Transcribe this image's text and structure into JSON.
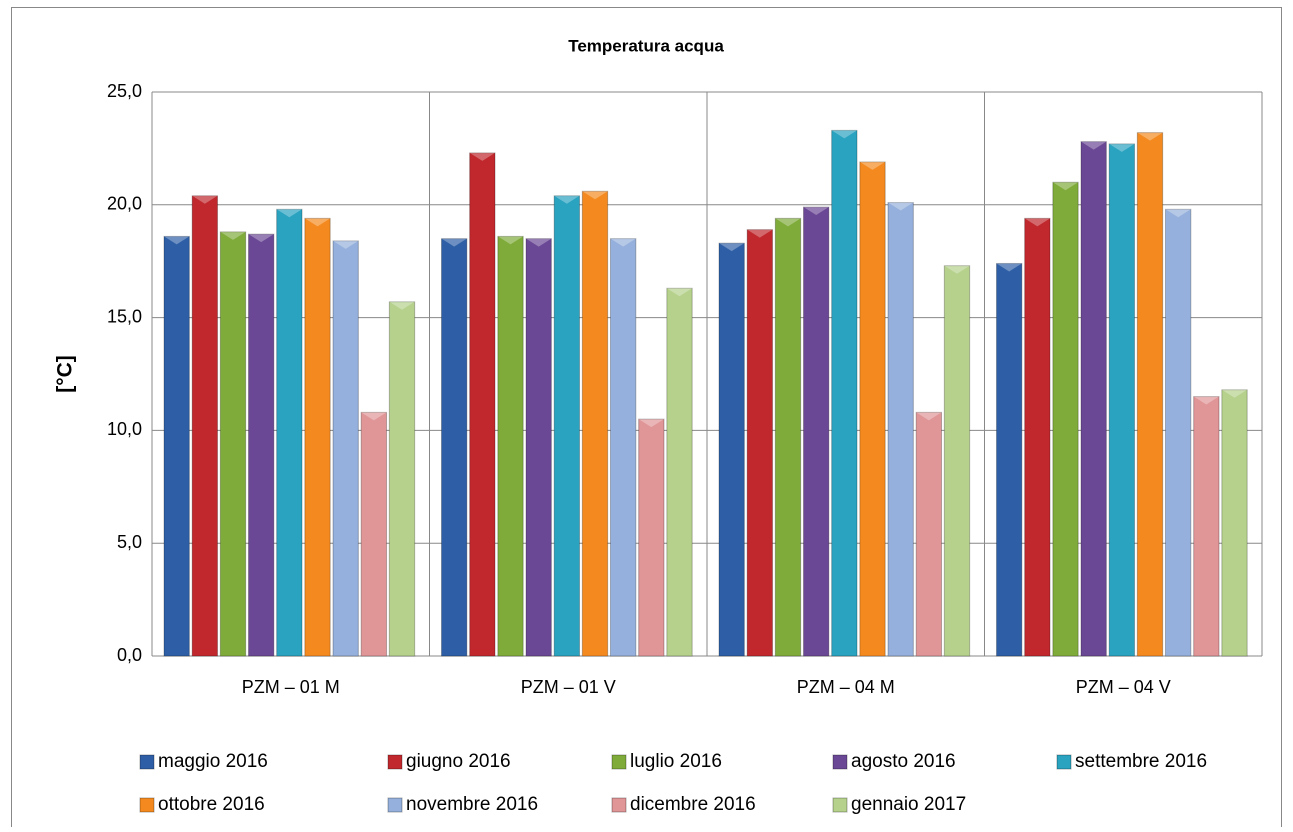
{
  "chart_data": {
    "type": "bar",
    "title": "Temperatura acqua",
    "y_label": "[°C]",
    "categories": [
      "PZM – 01 M",
      "PZM – 01 V",
      "PZM – 04 M",
      "PZM – 04 V"
    ],
    "series": [
      {
        "name": "maggio 2016",
        "color": "#2e5fa6",
        "values": [
          18.6,
          18.5,
          18.3,
          17.4
        ]
      },
      {
        "name": "giugno 2016",
        "color": "#c0282d",
        "values": [
          20.4,
          22.3,
          18.9,
          19.4
        ]
      },
      {
        "name": "luglio 2016",
        "color": "#7fab3a",
        "values": [
          18.8,
          18.6,
          19.4,
          21.0
        ]
      },
      {
        "name": "agosto 2016",
        "color": "#6b4895",
        "values": [
          18.7,
          18.5,
          19.9,
          22.8
        ]
      },
      {
        "name": "settembre 2016",
        "color": "#2aa3c0",
        "values": [
          19.8,
          20.4,
          23.3,
          22.7
        ]
      },
      {
        "name": "ottobre 2016",
        "color": "#f48a1f",
        "values": [
          19.4,
          20.6,
          21.9,
          23.2
        ]
      },
      {
        "name": "novembre 2016",
        "color": "#95b0dc",
        "values": [
          18.4,
          18.5,
          20.1,
          19.8
        ]
      },
      {
        "name": "dicembre 2016",
        "color": "#e09597",
        "values": [
          10.8,
          10.5,
          10.8,
          11.5
        ]
      },
      {
        "name": "gennaio 2017",
        "color": "#b5d18c",
        "values": [
          15.7,
          16.3,
          17.3,
          11.8
        ]
      }
    ],
    "ylim": [
      0,
      25
    ],
    "yticks": [
      {
        "value": 0,
        "label": "0,0"
      },
      {
        "value": 5,
        "label": "5,0"
      },
      {
        "value": 10,
        "label": "10,0"
      },
      {
        "value": 15,
        "label": "15,0"
      },
      {
        "value": 20,
        "label": "20,0"
      },
      {
        "value": 25,
        "label": "25,0"
      }
    ],
    "grid": true,
    "legend": "bottom"
  }
}
